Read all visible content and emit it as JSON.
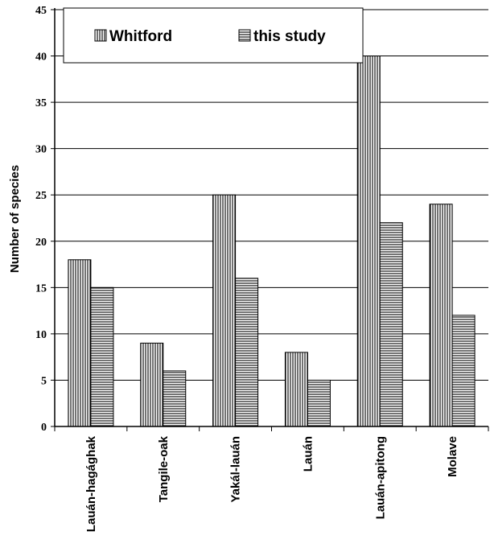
{
  "chart_data": {
    "type": "bar",
    "categories": [
      "Lauán-hagághak",
      "Tangile-oak",
      "Yakál-lauán",
      "Lauán",
      "Lauán-apitong",
      "Molave"
    ],
    "series": [
      {
        "name": "Whitford",
        "values": [
          18,
          9,
          25,
          8,
          40,
          24
        ],
        "pattern": "vertical-stripes"
      },
      {
        "name": "this study",
        "values": [
          15,
          6,
          16,
          5,
          22,
          12
        ],
        "pattern": "horizontal-stripes"
      }
    ],
    "title": "",
    "xlabel": "",
    "ylabel": "Number of species",
    "ylim": [
      0,
      45
    ],
    "yticks": [
      0,
      5,
      10,
      15,
      20,
      25,
      30,
      35,
      40,
      45
    ],
    "grid": true,
    "legend_position": "top-left"
  }
}
